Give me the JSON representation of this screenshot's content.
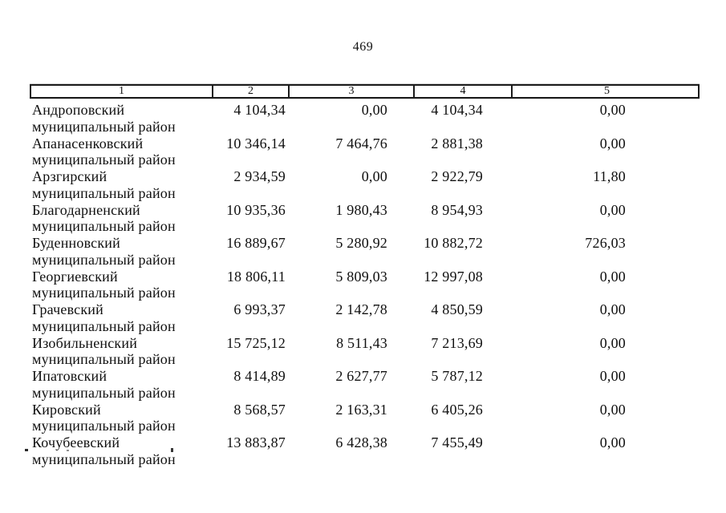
{
  "page": {
    "number": "469"
  },
  "table": {
    "headers": [
      "1",
      "2",
      "3",
      "4",
      "5"
    ],
    "rows": [
      {
        "name": "Андроповский",
        "type": "муниципальный район",
        "col2": "4 104,34",
        "col3": "0,00",
        "col4": "4 104,34",
        "col5": "0,00"
      },
      {
        "name": "Апанасенковский",
        "type": "муниципальный район",
        "col2": "10 346,14",
        "col3": "7 464,76",
        "col4": "2 881,38",
        "col5": "0,00"
      },
      {
        "name": "Арзгирский",
        "type": "муниципальный район",
        "col2": "2 934,59",
        "col3": "0,00",
        "col4": "2 922,79",
        "col5": "11,80"
      },
      {
        "name": "Благодарненский",
        "type": "муниципальный район",
        "col2": "10 935,36",
        "col3": "1 980,43",
        "col4": "8 954,93",
        "col5": "0,00"
      },
      {
        "name": "Буденновский",
        "type": "муниципальный район",
        "col2": "16 889,67",
        "col3": "5 280,92",
        "col4": "10 882,72",
        "col5": "726,03"
      },
      {
        "name": "Георгиевский",
        "type": "муниципальный район",
        "col2": "18 806,11",
        "col3": "5 809,03",
        "col4": "12 997,08",
        "col5": "0,00"
      },
      {
        "name": "Грачевский",
        "type": "муниципальный район",
        "col2": "6 993,37",
        "col3": "2 142,78",
        "col4": "4 850,59",
        "col5": "0,00"
      },
      {
        "name": "Изобильненский",
        "type": "муниципальный район",
        "col2": "15 725,12",
        "col3": "8 511,43",
        "col4": "7 213,69",
        "col5": "0,00"
      },
      {
        "name": "Ипатовский",
        "type": "муниципальный район",
        "col2": "8 414,89",
        "col3": "2 627,77",
        "col4": "5 787,12",
        "col5": "0,00"
      },
      {
        "name": "Кировский",
        "type": "муниципальный район",
        "col2": "8 568,57",
        "col3": "2 163,31",
        "col4": "6 405,26",
        "col5": "0,00"
      },
      {
        "name": "Кочубеевский",
        "type": "муниципальный район",
        "col2": "13 883,87",
        "col3": "6 428,38",
        "col4": "7 455,49",
        "col5": "0,00"
      }
    ]
  }
}
